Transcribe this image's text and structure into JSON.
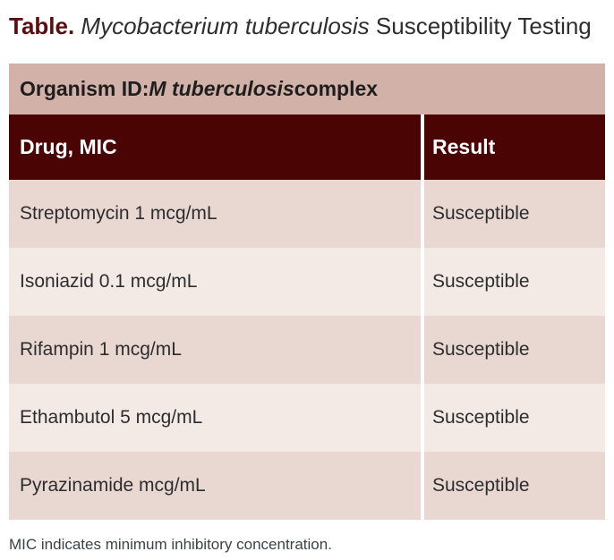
{
  "caption": {
    "label": "Table.",
    "organism_italic": " Mycobacterium tuberculosis",
    "rest": " Susceptibility Testing"
  },
  "table": {
    "organism_row": {
      "prefix": "Organism ID: ",
      "name_italic": "M tuberculosis",
      "suffix": " complex"
    },
    "columns": [
      "Drug, MIC",
      "Result"
    ],
    "rows": [
      {
        "drug": "Streptomycin 1 mcg/mL",
        "result": "Susceptible"
      },
      {
        "drug": "Isoniazid 0.1 mcg/mL",
        "result": "Susceptible"
      },
      {
        "drug": "Rifampin 1 mcg/mL",
        "result": "Susceptible"
      },
      {
        "drug": "Ethambutol 5 mcg/mL",
        "result": "Susceptible"
      },
      {
        "drug": "Pyrazinamide mcg/mL",
        "result": "Susceptible"
      }
    ]
  },
  "footnote": "MIC indicates minimum inhibitory concentration.",
  "colors": {
    "caption_accent": "#5a0e10",
    "caption_text": "#2e2e30",
    "organism_row_bg": "#d2b1a8",
    "header_row_bg": "#4b0404",
    "header_row_text": "#ffffff",
    "row_odd_bg": "#e9d8d1",
    "row_even_bg": "#f3eae5",
    "row_text": "#2d2d30",
    "footnote_text": "#3a434b",
    "column_divider": "#ffffff"
  }
}
